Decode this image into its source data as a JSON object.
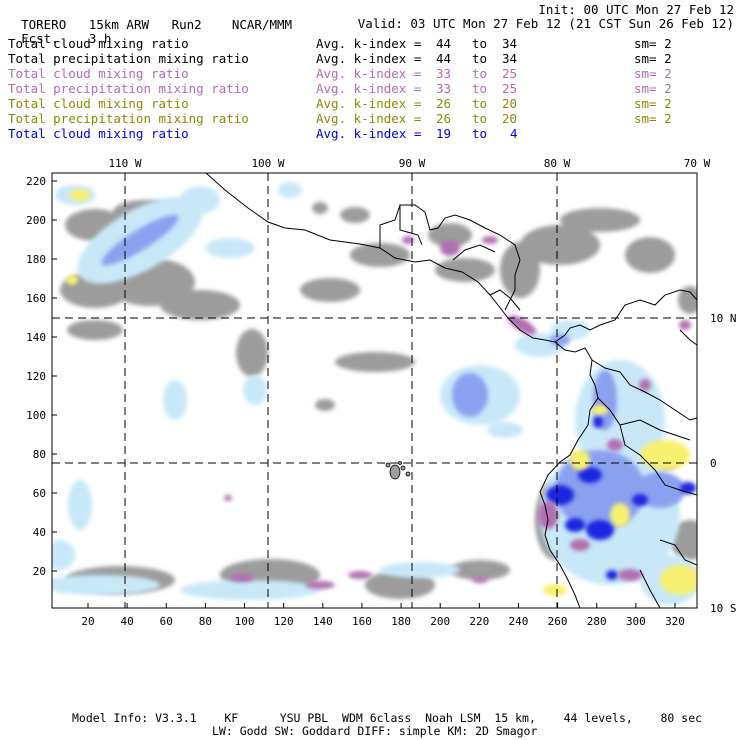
{
  "header": {
    "model": "TORERO",
    "grid": "15km ARW",
    "run": "Run2",
    "org": "NCAR/MMM",
    "fcst_label": "Fcst.",
    "fcst_value": "3 h",
    "init": "Init: 00 UTC Mon 27 Feb 12",
    "valid": "Valid: 03 UTC Mon 27 Feb 12 (21 CST Sun 26 Feb 12)"
  },
  "legend": [
    {
      "field": "Total cloud mixing ratio",
      "kidx": "Avg. k-index =",
      "from": "44",
      "to_word": "to",
      "to": "34",
      "sm": "sm= 2",
      "color": "#000000"
    },
    {
      "field": "Total precipitation mixing ratio",
      "kidx": "Avg. k-index =",
      "from": "44",
      "to_word": "to",
      "to": "34",
      "sm": "sm= 2",
      "color": "#000000"
    },
    {
      "field": "Total cloud mixing ratio",
      "kidx": "Avg. k-index =",
      "from": "33",
      "to_word": "to",
      "to": "25",
      "sm": "sm= 2",
      "color": "#b36ab3"
    },
    {
      "field": "Total precipitation mixing ratio",
      "kidx": "Avg. k-index =",
      "from": "33",
      "to_word": "to",
      "to": "25",
      "sm": "sm= 2",
      "color": "#b36ab3"
    },
    {
      "field": "Total cloud mixing ratio",
      "kidx": "Avg. k-index =",
      "from": "26",
      "to_word": "to",
      "to": "20",
      "sm": "sm= 2",
      "color": "#8a8a00"
    },
    {
      "field": "Total precipitation mixing ratio",
      "kidx": "Avg. k-index =",
      "from": "26",
      "to_word": "to",
      "to": "20",
      "sm": "sm= 2",
      "color": "#8a8a00"
    },
    {
      "field": "Total cloud mixing ratio",
      "kidx": "Avg. k-index =",
      "from": "19",
      "to_word": "to",
      "to": "4",
      "sm": "",
      "color": "#0000e0"
    }
  ],
  "map": {
    "top_lon_labels": [
      "110 W",
      "100 W",
      "90 W",
      "80 W",
      "70 W"
    ],
    "right_lat_labels": [
      "10 N",
      "0",
      "10 S"
    ],
    "y_ticks": [
      "220",
      "200",
      "180",
      "160",
      "140",
      "120",
      "100",
      "80",
      "60",
      "40",
      "20"
    ],
    "x_ticks": [
      "20",
      "40",
      "60",
      "80",
      "100",
      "120",
      "140",
      "160",
      "180",
      "200",
      "220",
      "240",
      "260",
      "280",
      "300",
      "320"
    ],
    "colors": {
      "cloud_gray": "#9c9c9c",
      "light_blue": "#c8e8f8",
      "mid_blue": "#8ca0f0",
      "deep_blue": "#1c28e0",
      "purple": "#b070b0",
      "yellow": "#f8f070"
    }
  },
  "footer": {
    "line1": "Model Info: V3.3.1    KF      YSU PBL  WDM 6class  Noah LSM  15 km,    44 levels,    80 sec",
    "line2": "LW: Godd SW: Goddard DIFF: simple KM: 2D Smagor"
  }
}
